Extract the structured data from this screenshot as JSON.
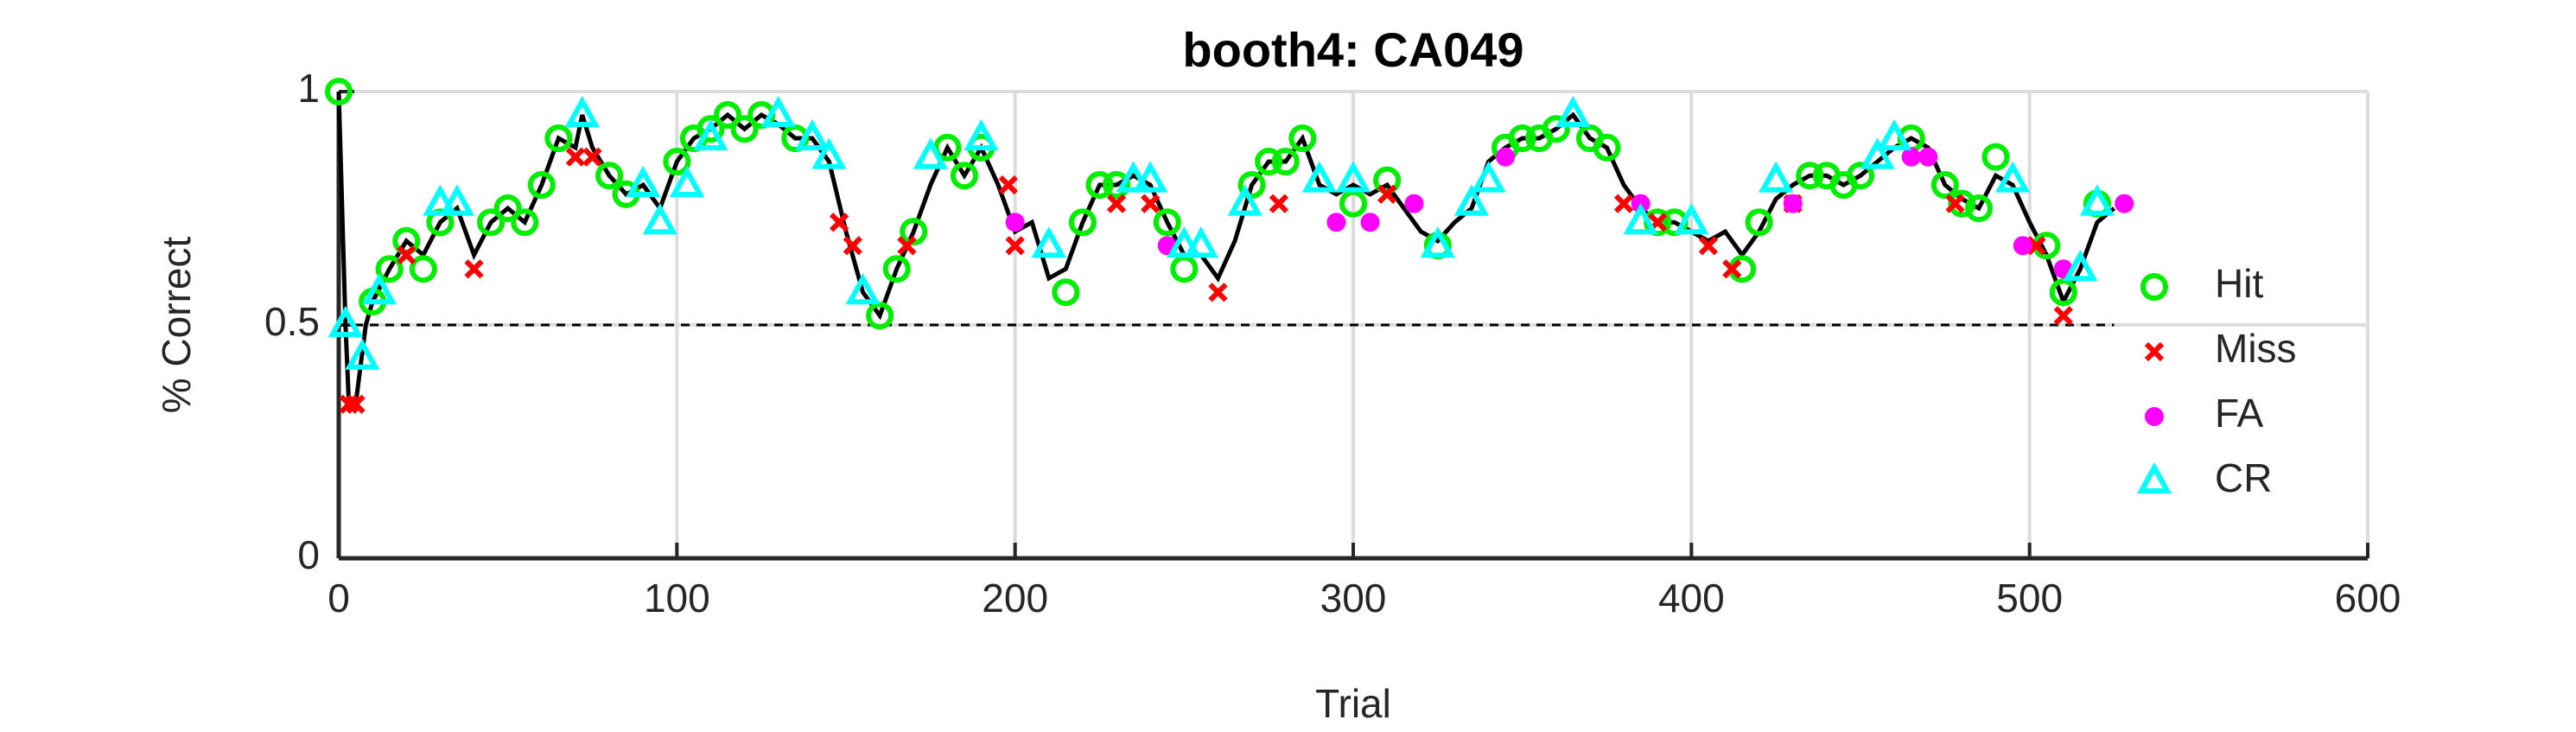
{
  "chart_data": {
    "type": "line",
    "title": "booth4: CA049",
    "x_label": "Trial",
    "y_label": "% Correct",
    "xlim": [
      0,
      600
    ],
    "ylim": [
      0,
      1
    ],
    "xticks": [
      0,
      100,
      200,
      300,
      400,
      500,
      600
    ],
    "yticks": [
      0,
      0.5,
      1
    ],
    "grid": true,
    "hline": 0.5,
    "line_color": "#000000",
    "x": [
      0,
      2,
      3,
      5,
      8,
      10,
      15,
      20,
      25,
      30,
      35,
      40,
      45,
      50,
      55,
      60,
      65,
      70,
      72,
      75,
      80,
      85,
      90,
      95,
      100,
      105,
      110,
      115,
      120,
      125,
      130,
      135,
      140,
      145,
      150,
      155,
      160,
      165,
      170,
      175,
      180,
      185,
      190,
      195,
      200,
      205,
      210,
      215,
      220,
      225,
      230,
      235,
      240,
      245,
      250,
      255,
      260,
      265,
      270,
      275,
      280,
      285,
      290,
      295,
      300,
      305,
      310,
      315,
      320,
      325,
      330,
      335,
      340,
      345,
      350,
      355,
      360,
      365,
      370,
      375,
      380,
      385,
      390,
      395,
      400,
      405,
      410,
      415,
      420,
      425,
      430,
      435,
      440,
      445,
      450,
      455,
      460,
      465,
      470,
      475,
      480,
      485,
      490,
      495,
      500,
      505,
      510,
      515,
      520,
      525
    ],
    "values": [
      1.0,
      0.5,
      0.33,
      0.33,
      0.5,
      0.55,
      0.62,
      0.68,
      0.65,
      0.72,
      0.75,
      0.65,
      0.72,
      0.75,
      0.72,
      0.8,
      0.9,
      0.88,
      0.95,
      0.88,
      0.82,
      0.78,
      0.8,
      0.75,
      0.85,
      0.9,
      0.92,
      0.95,
      0.92,
      0.95,
      0.93,
      0.9,
      0.9,
      0.85,
      0.7,
      0.57,
      0.52,
      0.62,
      0.7,
      0.8,
      0.88,
      0.82,
      0.88,
      0.8,
      0.7,
      0.72,
      0.6,
      0.62,
      0.72,
      0.8,
      0.8,
      0.82,
      0.8,
      0.72,
      0.65,
      0.65,
      0.6,
      0.68,
      0.8,
      0.85,
      0.85,
      0.9,
      0.8,
      0.78,
      0.8,
      0.78,
      0.8,
      0.75,
      0.7,
      0.68,
      0.72,
      0.75,
      0.85,
      0.88,
      0.9,
      0.9,
      0.92,
      0.95,
      0.9,
      0.88,
      0.8,
      0.75,
      0.72,
      0.72,
      0.7,
      0.68,
      0.7,
      0.65,
      0.7,
      0.77,
      0.8,
      0.82,
      0.82,
      0.8,
      0.82,
      0.85,
      0.88,
      0.9,
      0.88,
      0.8,
      0.77,
      0.75,
      0.82,
      0.8,
      0.72,
      0.65,
      0.55,
      0.62,
      0.72,
      0.75
    ],
    "legend": "right",
    "markers": [
      {
        "name": "Hit",
        "color": "#00ee00",
        "marker": "circle",
        "x": [
          0,
          10,
          15,
          20,
          25,
          30,
          45,
          50,
          55,
          60,
          65,
          80,
          85,
          100,
          105,
          110,
          115,
          120,
          125,
          135,
          160,
          165,
          170,
          180,
          185,
          190,
          215,
          220,
          225,
          230,
          245,
          250,
          270,
          275,
          280,
          285,
          300,
          310,
          325,
          345,
          350,
          355,
          360,
          370,
          375,
          390,
          395,
          415,
          420,
          435,
          440,
          445,
          450,
          465,
          475,
          480,
          485,
          490,
          505,
          510,
          520
        ],
        "values": [
          1.0,
          0.55,
          0.62,
          0.68,
          0.62,
          0.72,
          0.72,
          0.75,
          0.72,
          0.8,
          0.9,
          0.82,
          0.78,
          0.85,
          0.9,
          0.92,
          0.95,
          0.92,
          0.95,
          0.9,
          0.52,
          0.62,
          0.7,
          0.88,
          0.82,
          0.88,
          0.57,
          0.72,
          0.8,
          0.8,
          0.72,
          0.62,
          0.8,
          0.85,
          0.85,
          0.9,
          0.76,
          0.81,
          0.67,
          0.88,
          0.9,
          0.9,
          0.92,
          0.9,
          0.88,
          0.72,
          0.72,
          0.62,
          0.72,
          0.82,
          0.82,
          0.8,
          0.82,
          0.9,
          0.8,
          0.76,
          0.75,
          0.86,
          0.67,
          0.57,
          0.76
        ]
      },
      {
        "name": "Miss",
        "color": "#ff0000",
        "marker": "x",
        "x": [
          3,
          5,
          20,
          40,
          70,
          75,
          148,
          152,
          168,
          198,
          200,
          230,
          240,
          260,
          278,
          310,
          380,
          390,
          405,
          412,
          430,
          478,
          502,
          510
        ],
        "values": [
          0.33,
          0.33,
          0.65,
          0.62,
          0.86,
          0.86,
          0.72,
          0.67,
          0.67,
          0.8,
          0.67,
          0.76,
          0.76,
          0.57,
          0.76,
          0.78,
          0.76,
          0.72,
          0.67,
          0.62,
          0.76,
          0.76,
          0.67,
          0.52
        ]
      },
      {
        "name": "FA",
        "color": "#ff00ff",
        "marker": "dot",
        "x": [
          200,
          245,
          295,
          305,
          318,
          345,
          385,
          430,
          465,
          470,
          498,
          510,
          528
        ],
        "values": [
          0.72,
          0.67,
          0.72,
          0.72,
          0.76,
          0.86,
          0.76,
          0.76,
          0.86,
          0.86,
          0.67,
          0.62,
          0.76
        ]
      },
      {
        "name": "CR",
        "color": "#00ffff",
        "marker": "triangle",
        "x": [
          2,
          7,
          12,
          30,
          35,
          72,
          90,
          95,
          103,
          110,
          130,
          140,
          145,
          155,
          175,
          190,
          210,
          235,
          240,
          250,
          255,
          268,
          290,
          300,
          325,
          335,
          340,
          365,
          385,
          400,
          425,
          455,
          460,
          495,
          515,
          520
        ],
        "values": [
          0.5,
          0.43,
          0.57,
          0.76,
          0.76,
          0.95,
          0.8,
          0.72,
          0.8,
          0.9,
          0.95,
          0.9,
          0.86,
          0.57,
          0.86,
          0.9,
          0.67,
          0.81,
          0.81,
          0.67,
          0.67,
          0.76,
          0.81,
          0.81,
          0.67,
          0.76,
          0.81,
          0.95,
          0.72,
          0.72,
          0.81,
          0.86,
          0.9,
          0.81,
          0.62,
          0.76
        ]
      }
    ]
  }
}
